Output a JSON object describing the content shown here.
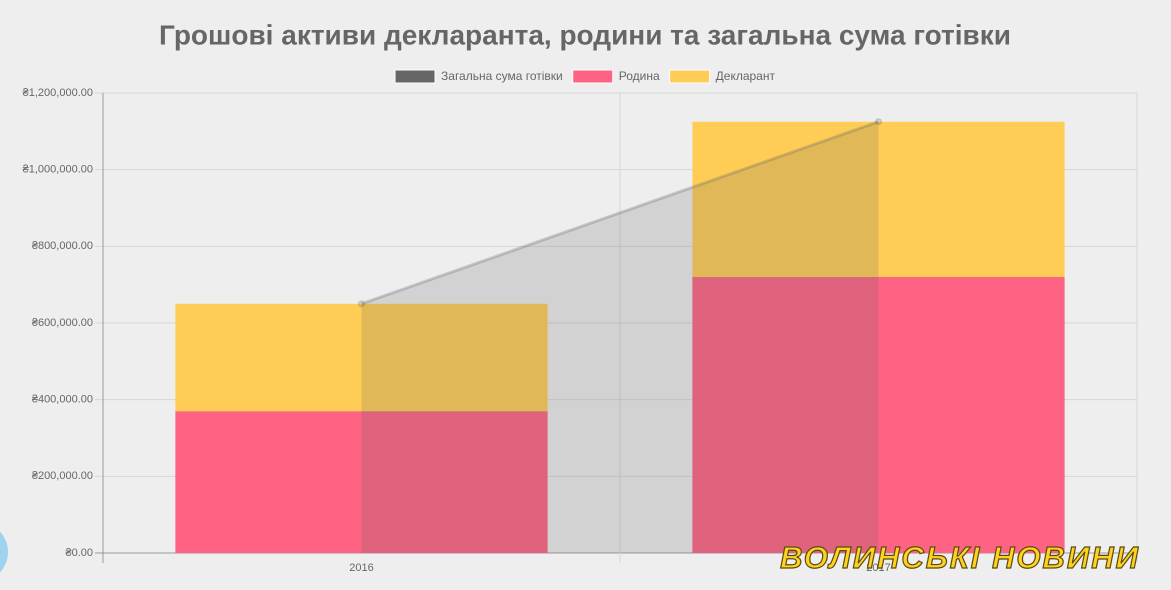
{
  "chart_data": {
    "type": "bar",
    "stacked": true,
    "title": "Грошові активи декларанта, родини та загальна сума готівки",
    "categories": [
      "2016",
      "2017"
    ],
    "series": [
      {
        "name": "Загальна сума готівки",
        "type": "line",
        "color": "#666666",
        "values": [
          650000,
          1125000
        ]
      },
      {
        "name": "Родина",
        "type": "bar",
        "color": "#ff6384",
        "values": [
          370000,
          720000
        ]
      },
      {
        "name": "Декларант",
        "type": "bar",
        "color": "#ffcd56",
        "values": [
          280000,
          405000
        ]
      }
    ],
    "ylim": [
      0,
      1200000
    ],
    "yticks": [
      {
        "value": 0,
        "label": "₴0.00"
      },
      {
        "value": 200000,
        "label": "₴200,000.00"
      },
      {
        "value": 400000,
        "label": "₴400,000.00"
      },
      {
        "value": 600000,
        "label": "₴600,000.00"
      },
      {
        "value": 800000,
        "label": "₴800,000.00"
      },
      {
        "value": 1000000,
        "label": "₴1,000,000.00"
      },
      {
        "value": 1200000,
        "label": "₴1,200,000.00"
      }
    ],
    "grid": true,
    "legend": "top",
    "watermark": "ВОЛИНСЬКІ НОВИНИ"
  }
}
